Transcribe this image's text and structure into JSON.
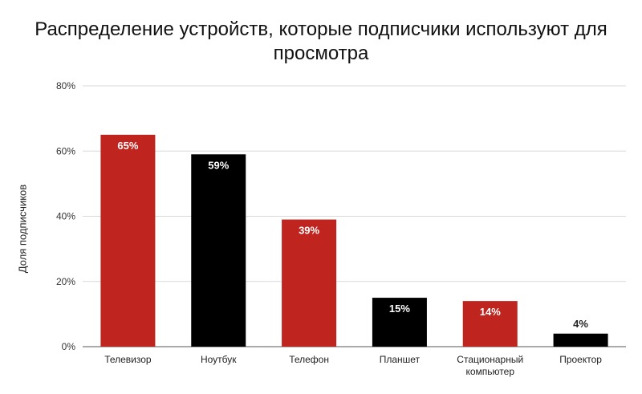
{
  "chart_data": {
    "type": "bar",
    "title": "Распределение устройств, которые подписчики используют для просмотра",
    "xlabel": "",
    "ylabel": "Доля подписчиков",
    "ylim": [
      0,
      80
    ],
    "yticks": [
      "0%",
      "20%",
      "40%",
      "60%",
      "80%"
    ],
    "ytick_values": [
      0,
      20,
      40,
      60,
      80
    ],
    "grid": true,
    "legend": "none",
    "categories": [
      "Телевизор",
      "Ноутбук",
      "Телефон",
      "Планшет",
      "Стационарный компьютер",
      "Проектор"
    ],
    "category_lines": [
      [
        "Телевизор"
      ],
      [
        "Ноутбук"
      ],
      [
        "Телефон"
      ],
      [
        "Планшет"
      ],
      [
        "Стационарный",
        "компьютер"
      ],
      [
        "Проектор"
      ]
    ],
    "values": [
      65,
      59,
      39,
      15,
      14,
      4
    ],
    "data_labels": [
      "65%",
      "59%",
      "39%",
      "15%",
      "14%",
      "4%"
    ],
    "bar_colors": [
      "#c0241f",
      "#000000",
      "#c0241f",
      "#000000",
      "#c0241f",
      "#000000"
    ]
  }
}
